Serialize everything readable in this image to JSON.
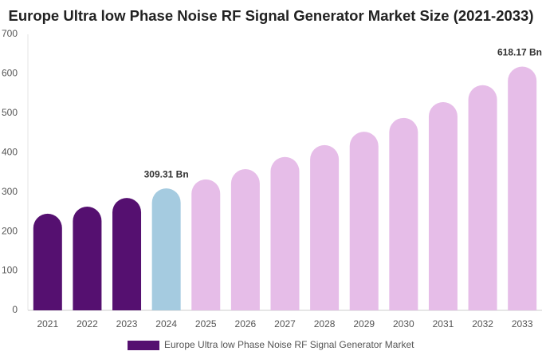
{
  "chart_data": {
    "type": "bar",
    "title": "Europe Ultra low Phase Noise RF Signal Generator Market Size (2021-2033)",
    "categories": [
      "2021",
      "2022",
      "2023",
      "2024",
      "2025",
      "2026",
      "2027",
      "2028",
      "2029",
      "2030",
      "2031",
      "2032",
      "2033"
    ],
    "series": [
      {
        "name": "Europe Ultra low Phase Noise RF Signal Generator Market",
        "color": "#551070",
        "colors": [
          "#551070",
          "#551070",
          "#551070",
          "#a5cbe0",
          "#e6bde8",
          "#e6bde8",
          "#e6bde8",
          "#e6bde8",
          "#e6bde8",
          "#e6bde8",
          "#e6bde8",
          "#e6bde8",
          "#e6bde8"
        ],
        "values": [
          245,
          263,
          285,
          309.31,
          332,
          358,
          389,
          419,
          453,
          488,
          528,
          571,
          618.17
        ],
        "value_labels": [
          null,
          null,
          null,
          "309.31 Bn",
          null,
          null,
          null,
          null,
          null,
          null,
          null,
          null,
          "618.17 Bn"
        ]
      }
    ],
    "ylim": [
      0,
      700
    ],
    "yticks": [
      0,
      100,
      200,
      300,
      400,
      500,
      600,
      700
    ],
    "grid": false
  }
}
